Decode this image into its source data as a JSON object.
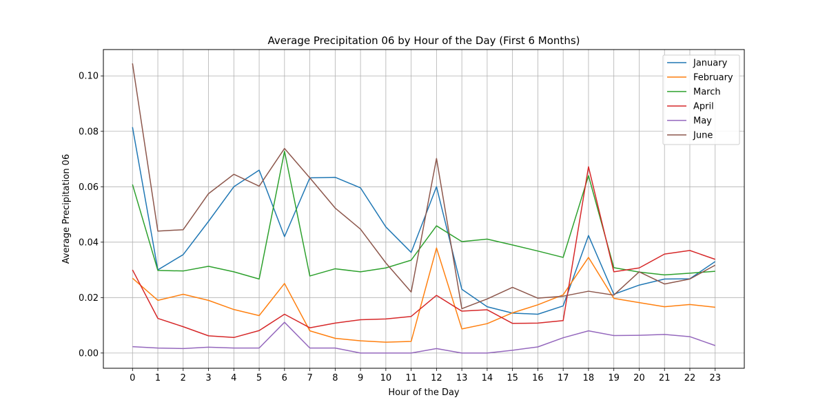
{
  "chart_data": {
    "type": "line",
    "title": "Average Precipitation 06 by Hour of the Day (First 6 Months)",
    "xlabel": "Hour of the Day",
    "ylabel": "Average Precipitation 06",
    "x": [
      0,
      1,
      2,
      3,
      4,
      5,
      6,
      7,
      8,
      9,
      10,
      11,
      12,
      13,
      14,
      15,
      16,
      17,
      18,
      19,
      20,
      21,
      22,
      23
    ],
    "xlim": [
      -1.15,
      24.15
    ],
    "ylim": [
      -0.0055,
      0.1095
    ],
    "yticks": [
      0.0,
      0.02,
      0.04,
      0.06,
      0.08,
      0.1
    ],
    "ytick_labels": [
      "0.00",
      "0.02",
      "0.04",
      "0.06",
      "0.08",
      "0.10"
    ],
    "grid": true,
    "legend_position": "top-right",
    "series": [
      {
        "name": "January",
        "color": "#1f77b4",
        "values": [
          0.0815,
          0.03,
          0.0355,
          0.0475,
          0.06,
          0.066,
          0.042,
          0.0632,
          0.0634,
          0.0596,
          0.0455,
          0.0363,
          0.06,
          0.023,
          0.0167,
          0.0144,
          0.014,
          0.017,
          0.0424,
          0.0212,
          0.0245,
          0.0267,
          0.0268,
          0.033
        ]
      },
      {
        "name": "February",
        "color": "#ff7f0e",
        "values": [
          0.027,
          0.019,
          0.0212,
          0.019,
          0.0157,
          0.0135,
          0.0251,
          0.008,
          0.0053,
          0.0044,
          0.0039,
          0.0042,
          0.0379,
          0.0087,
          0.0106,
          0.0145,
          0.0174,
          0.021,
          0.0345,
          0.0197,
          0.0182,
          0.0167,
          0.0175,
          0.0165
        ]
      },
      {
        "name": "March",
        "color": "#2ca02c",
        "values": [
          0.0608,
          0.0298,
          0.0296,
          0.0313,
          0.0293,
          0.0267,
          0.0728,
          0.0278,
          0.0304,
          0.0293,
          0.0307,
          0.0335,
          0.0459,
          0.0402,
          0.0411,
          0.039,
          0.0368,
          0.0345,
          0.064,
          0.0308,
          0.0292,
          0.0282,
          0.0288,
          0.0295
        ]
      },
      {
        "name": "April",
        "color": "#d62728",
        "values": [
          0.03,
          0.0125,
          0.0095,
          0.0062,
          0.0056,
          0.0081,
          0.014,
          0.0091,
          0.0108,
          0.012,
          0.0123,
          0.0132,
          0.0208,
          0.0151,
          0.0156,
          0.0107,
          0.0108,
          0.0117,
          0.0672,
          0.0293,
          0.0307,
          0.0357,
          0.037,
          0.0338
        ]
      },
      {
        "name": "May",
        "color": "#9467bd",
        "values": [
          0.0023,
          0.0018,
          0.0016,
          0.0021,
          0.0018,
          0.0018,
          0.0111,
          0.0018,
          0.0018,
          0.0,
          0.0,
          0.0,
          0.0016,
          0.0,
          0.0,
          0.001,
          0.0022,
          0.0055,
          0.008,
          0.0063,
          0.0064,
          0.0067,
          0.0059,
          0.0027
        ]
      },
      {
        "name": "June",
        "color": "#8c564b",
        "values": [
          0.1045,
          0.044,
          0.0445,
          0.0575,
          0.0645,
          0.0602,
          0.0738,
          0.0632,
          0.0523,
          0.0447,
          0.0325,
          0.022,
          0.0702,
          0.016,
          0.0195,
          0.0237,
          0.0198,
          0.0205,
          0.0223,
          0.0209,
          0.0293,
          0.0249,
          0.0267,
          0.0317
        ]
      }
    ]
  }
}
